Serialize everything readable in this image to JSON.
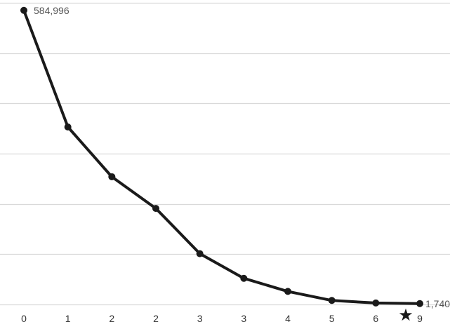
{
  "chart_data": {
    "type": "line",
    "categories": [
      "0",
      "1",
      "2",
      "2",
      "3",
      "3",
      "4",
      "5",
      "6",
      "9"
    ],
    "values": [
      584996,
      353000,
      254000,
      191000,
      101000,
      52000,
      26000,
      8000,
      3000,
      1740
    ],
    "data_labels": {
      "first": "584,996",
      "last": "1,740"
    },
    "ylim": [
      0,
      600000
    ],
    "grid": true,
    "highlight_marker": {
      "category_index": 9,
      "symbol": "★"
    },
    "colors": {
      "line": "#1a1a1a",
      "grid": "#d9d9d9"
    }
  }
}
